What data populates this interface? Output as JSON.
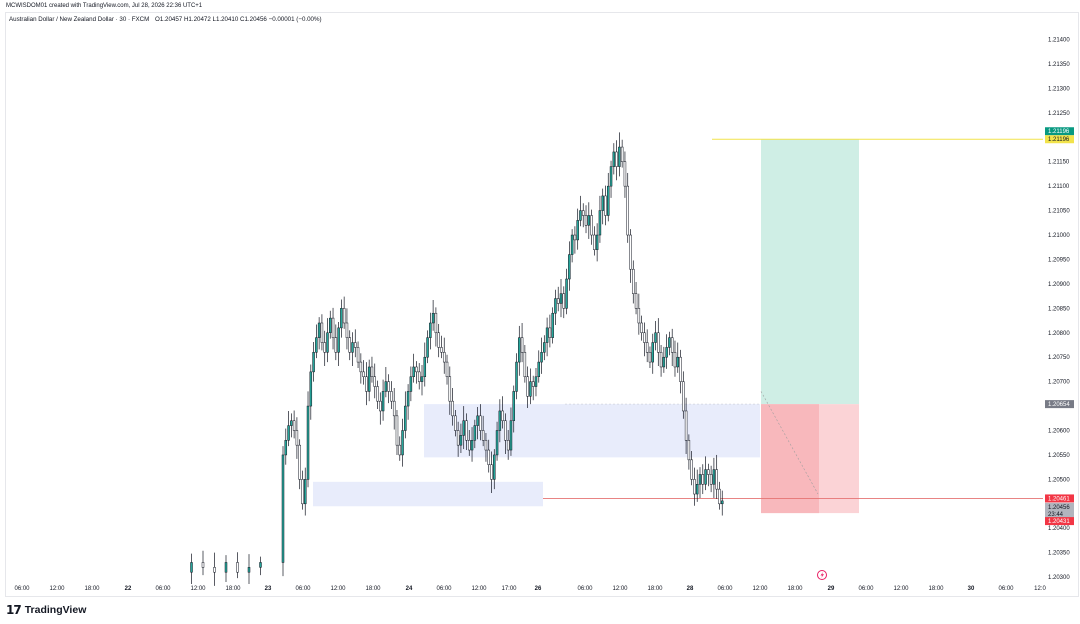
{
  "credit": "MCWISDOM01 created with TradingView.com, Jul 28, 2026 22:36 UTC+1",
  "header": {
    "symbol": "Australian Dollar / New Zealand Dollar · 30 · FXCM",
    "ohlc": "O1.20457  H1.20472  L1.20410  C1.20456  −0.00001 (−0.00%)"
  },
  "brand": {
    "logo_glyph": "17",
    "name": "TradingView"
  },
  "colors": {
    "bull": "#26a69a",
    "candle_wick": "#131722",
    "profit_zone": "#cfeee5",
    "loss_zone_light": "#fbd3d6",
    "loss_zone_dark": "#f6a2a8",
    "demand_zone": "#e8ecfb",
    "target_line": "#f2e34b",
    "entry_line": "#d1d4dc",
    "stop_line": "#e57373"
  },
  "price_axis": {
    "labels": [
      "1.21400",
      "1.21350",
      "1.21300",
      "1.21250",
      "1.21150",
      "1.21100",
      "1.21050",
      "1.21000",
      "1.20950",
      "1.20900",
      "1.20850",
      "1.20800",
      "1.20750",
      "1.20700",
      "1.20600",
      "1.20550",
      "1.20500",
      "1.20400",
      "1.20350",
      "1.20300"
    ],
    "target_tag": "1.21196",
    "target_tag_2": "1.21196",
    "entry_tag": "1.20654",
    "stop_tag_upper": "1.20461",
    "last_price_tag": "1.20456",
    "countdown_tag": "23:44",
    "stop_tag_lower": "1.20431"
  },
  "time_axis": {
    "labels": [
      "06:00",
      "12:00",
      "18:00",
      "22",
      "06:00",
      "12:00",
      "18:00",
      "23",
      "06:00",
      "12:00",
      "18:00",
      "24",
      "06:00",
      "12:00",
      "17:00",
      "26",
      "06:00",
      "12:00",
      "18:00",
      "28",
      "06:00",
      "12:00",
      "18:00",
      "29",
      "06:00",
      "12:00",
      "18:00",
      "30",
      "06:00",
      "12:0"
    ]
  },
  "chart_data": {
    "type": "candlestick",
    "title": "",
    "timeframe": "30",
    "ylim": [
      1.2029,
      1.2144
    ],
    "zones": [
      {
        "kind": "demand",
        "price_top": 1.20495,
        "price_bottom": 1.20445
      },
      {
        "kind": "demand",
        "price_top": 1.20654,
        "price_bottom": 1.20545
      },
      {
        "kind": "profit",
        "price_top": 1.21196,
        "price_bottom": 1.20654
      },
      {
        "kind": "loss",
        "price_top": 1.20654,
        "price_bottom": 1.20431
      }
    ],
    "levels": {
      "target": 1.21196,
      "entry": 1.20654,
      "stop": 1.20461,
      "last": 1.20456,
      "low": 1.20431
    },
    "path": [
      1.2031,
      1.2033,
      1.2032,
      1.2031,
      1.2033,
      1.2031,
      1.2032,
      1.2033,
      1.2055,
      1.2058,
      1.2061,
      1.2062,
      1.206,
      1.2057,
      1.205,
      1.2045,
      1.205,
      1.2065,
      1.2072,
      1.2076,
      1.2079,
      1.2082,
      1.2078,
      1.2076,
      1.208,
      1.2083,
      1.2079,
      1.2076,
      1.2081,
      1.2085,
      1.2082,
      1.2079,
      1.2076,
      1.2078,
      1.2077,
      1.2074,
      1.2072,
      1.2071,
      1.2068,
      1.2073,
      1.2071,
      1.2069,
      1.2066,
      1.2064,
      1.2068,
      1.207,
      1.2068,
      1.2066,
      1.2063,
      1.2057,
      1.2055,
      1.206,
      1.2065,
      1.2068,
      1.2071,
      1.2073,
      1.2072,
      1.207,
      1.2071,
      1.2075,
      1.2079,
      1.2082,
      1.2084,
      1.208,
      1.2077,
      1.2076,
      1.2074,
      1.2071,
      1.2066,
      1.2063,
      1.206,
      1.2057,
      1.2059,
      1.2062,
      1.2058,
      1.2056,
      1.2058,
      1.2061,
      1.2063,
      1.206,
      1.2058,
      1.2056,
      1.2053,
      1.205,
      1.2055,
      1.206,
      1.2064,
      1.2062,
      1.2058,
      1.2056,
      1.2062,
      1.2068,
      1.2074,
      1.2079,
      1.2076,
      1.2071,
      1.2067,
      1.207,
      1.2069,
      1.2071,
      1.2074,
      1.2076,
      1.2078,
      1.2081,
      1.2079,
      1.2084,
      1.2087,
      1.2086,
      1.2088,
      1.2085,
      1.2091,
      1.2096,
      1.21,
      1.2099,
      1.2103,
      1.2105,
      1.2104,
      1.2102,
      1.2104,
      1.21,
      1.2097,
      1.21,
      1.2105,
      1.2108,
      1.2104,
      1.211,
      1.2114,
      1.2117,
      1.2114,
      1.2118,
      1.2115,
      1.211,
      1.21,
      1.2093,
      1.2088,
      1.2085,
      1.2082,
      1.208,
      1.2078,
      1.2076,
      1.2074,
      1.2078,
      1.208,
      1.2076,
      1.2073,
      1.2075,
      1.2077,
      1.2079,
      1.2076,
      1.2073,
      1.2075,
      1.207,
      1.2064,
      1.2058,
      1.2054,
      1.205,
      1.2047,
      1.2049,
      1.2051,
      1.2049,
      1.2052,
      1.2051,
      1.2049,
      1.2052,
      1.2048,
      1.2045,
      1.20456
    ]
  }
}
